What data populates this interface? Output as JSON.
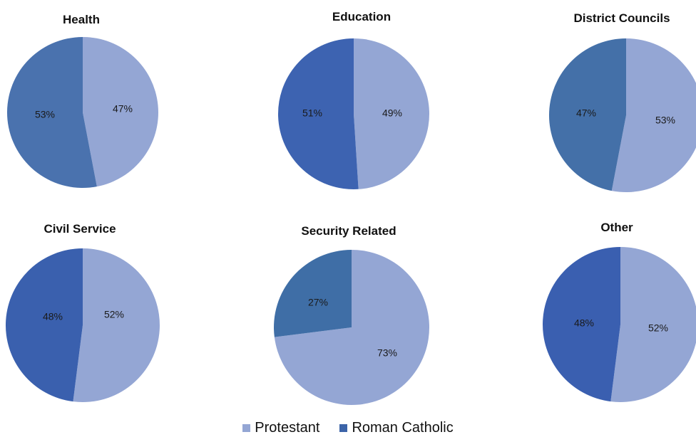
{
  "chart_data": [
    {
      "type": "pie",
      "title": "Health",
      "categories": [
        "Protestant",
        "Roman Catholic"
      ],
      "values": [
        47,
        53
      ],
      "labels": [
        "47%",
        "53%"
      ]
    },
    {
      "type": "pie",
      "title": "Education",
      "categories": [
        "Protestant",
        "Roman Catholic"
      ],
      "values": [
        49,
        51
      ],
      "labels": [
        "49%",
        "51%"
      ]
    },
    {
      "type": "pie",
      "title": "District Councils",
      "categories": [
        "Protestant",
        "Roman Catholic"
      ],
      "values": [
        53,
        47
      ],
      "labels": [
        "53%",
        "47%"
      ]
    },
    {
      "type": "pie",
      "title": "Civil Service",
      "categories": [
        "Protestant",
        "Roman Catholic"
      ],
      "values": [
        52,
        48
      ],
      "labels": [
        "52%",
        "48%"
      ]
    },
    {
      "type": "pie",
      "title": "Security Related",
      "categories": [
        "Protestant",
        "Roman Catholic"
      ],
      "values": [
        73,
        27
      ],
      "labels": [
        "73%",
        "27%"
      ]
    },
    {
      "type": "pie",
      "title": "Other",
      "categories": [
        "Protestant",
        "Roman Catholic"
      ],
      "values": [
        52,
        48
      ],
      "labels": [
        "52%",
        "48%"
      ]
    }
  ],
  "legend": {
    "items": [
      {
        "label": "Protestant",
        "color": "#94a6d4"
      },
      {
        "label": "Roman Catholic",
        "color": "#3c64a8"
      }
    ]
  },
  "colors": {
    "protestant": "#94a6d4",
    "roman_catholic_variants": [
      "#4a72ae",
      "#3d63b1",
      "#4470a8",
      "#3a60ae",
      "#3f6ea6",
      "#3a5fb0"
    ]
  }
}
